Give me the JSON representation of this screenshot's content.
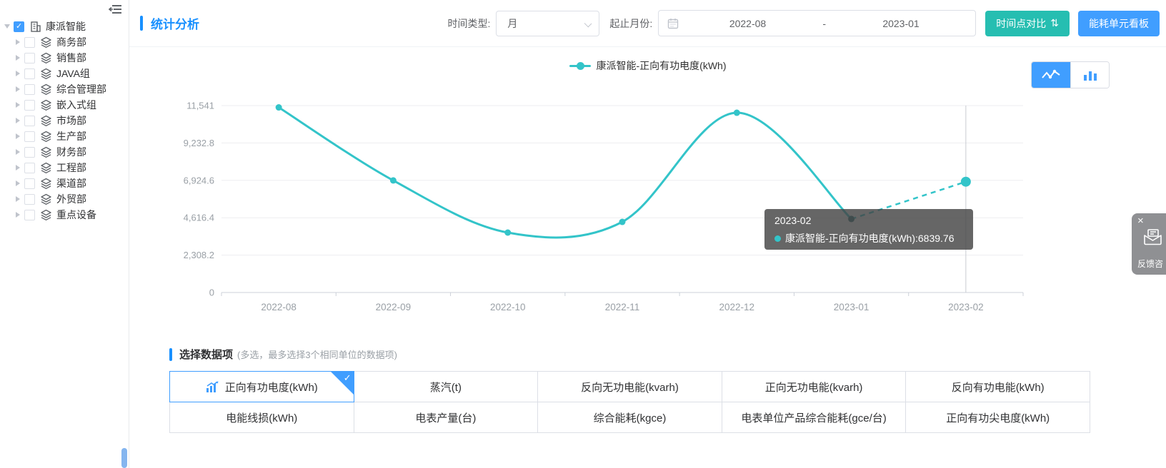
{
  "sidebar": {
    "root": {
      "label": "康派智能",
      "checked": true
    },
    "items": [
      {
        "label": "商务部"
      },
      {
        "label": "销售部"
      },
      {
        "label": "JAVA组"
      },
      {
        "label": "综合管理部"
      },
      {
        "label": "嵌入式组"
      },
      {
        "label": "市场部"
      },
      {
        "label": "生产部"
      },
      {
        "label": "财务部"
      },
      {
        "label": "工程部"
      },
      {
        "label": "渠道部"
      },
      {
        "label": "外贸部"
      },
      {
        "label": "重点设备"
      }
    ]
  },
  "header": {
    "title": "统计分析",
    "time_type_label": "时间类型:",
    "time_type_value": "月",
    "range_label": "起止月份:",
    "range_start": "2022-08",
    "range_separator": "-",
    "range_end": "2023-01",
    "compare_button": "时间点对比",
    "sort_icon": "⇅",
    "dashboard_button": "能耗单元看板"
  },
  "chart_data": {
    "type": "line",
    "categories": [
      "2022-08",
      "2022-09",
      "2022-10",
      "2022-11",
      "2022-12",
      "2023-01",
      "2023-02"
    ],
    "series": [
      {
        "name": "康派智能-正向有功电度(kWh)",
        "values": [
          11430,
          6920,
          3700,
          4360,
          11100,
          4540,
          6839.76
        ],
        "color": "#33c4c9",
        "dashed_from_index": 5,
        "highlight_point_index": 6,
        "hover_dark_point_index": 5,
        "hover_dark_color": "#2e6f74"
      }
    ],
    "ylim": [
      0,
      11541
    ],
    "ytick_labels": [
      "0",
      "2,308.2",
      "4,616.4",
      "6,924.6",
      "9,232.8",
      "11,541"
    ],
    "smooth": true,
    "grid": true,
    "legend_position": "top-center",
    "axis_pointer_index": 6
  },
  "tooltip": {
    "title": "2023-02",
    "text": "康派智能-正向有功电度(kWh):6839.76"
  },
  "data_items": {
    "title": "选择数据项",
    "note": "(多选，最多选择3个相同单位的数据项)",
    "selected_row": 0,
    "selected_col": 0,
    "rows": [
      [
        "正向有功电度(kWh)",
        "蒸汽(t)",
        "反向无功电能(kvarh)",
        "正向无功电能(kvarh)",
        "反向有功电能(kWh)"
      ],
      [
        "电能线损(kWh)",
        "电表产量(台)",
        "综合能耗(kgce)",
        "电表单位产品综合能耗(gce/台)",
        "正向有功尖电度(kWh)"
      ]
    ]
  },
  "feedback": {
    "close": "×",
    "label": "反馈咨"
  },
  "colors": {
    "primary_blue": "#409EFF",
    "title_blue": "#1890ff",
    "series_teal": "#33c4c9",
    "teal_button": "#26beb1",
    "axis_text": "#9aa0a6"
  }
}
